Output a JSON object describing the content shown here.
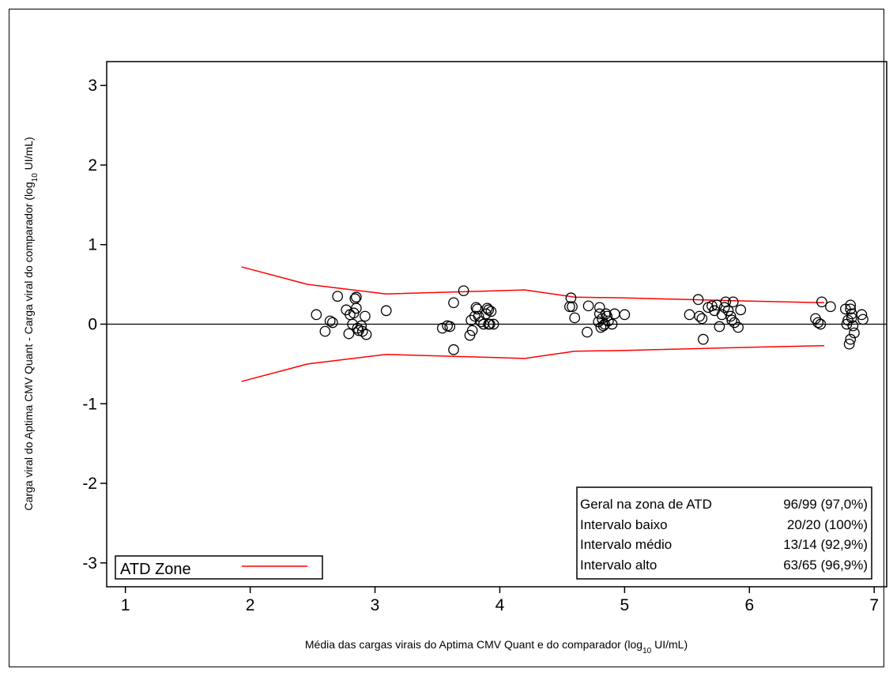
{
  "chart_data": {
    "type": "scatter",
    "title": "",
    "xlabel": {
      "main": "Média das cargas virais do Aptima CMV Quant e do comparador (log",
      "sub": "10",
      "unit": " UI/mL)"
    },
    "ylabel": {
      "main": "Carga viral do Aptima CMV Quant - Carga viral do comparador (log",
      "sub": "10",
      "unit": " UI/mL)"
    },
    "xlim": [
      0.85,
      7.1
    ],
    "ylim": [
      -3.3,
      3.3
    ],
    "x_ticks": [
      1,
      2,
      3,
      4,
      5,
      6,
      7
    ],
    "x_tick_labels": [
      "1",
      "2",
      "3",
      "4",
      "5",
      "6",
      "7"
    ],
    "y_ticks": [
      -3,
      -2,
      -1,
      0,
      1,
      2,
      3
    ],
    "y_tick_labels": [
      "-3",
      "-2",
      "-1",
      "0",
      "1",
      "2",
      "3"
    ],
    "zero_line": 0,
    "atd_zone": {
      "name": "ATD Zone",
      "color": "#ff0000",
      "x": [
        1.93,
        2.46,
        3.09,
        4.2,
        4.6,
        5.0,
        5.5,
        6.0,
        6.6
      ],
      "upper": [
        0.72,
        0.5,
        0.38,
        0.43,
        0.34,
        0.33,
        0.31,
        0.29,
        0.27
      ],
      "lower": [
        -0.72,
        -0.5,
        -0.38,
        -0.43,
        -0.34,
        -0.33,
        -0.31,
        -0.29,
        -0.27
      ]
    },
    "points": {
      "x": [
        2.53,
        2.6,
        2.64,
        2.66,
        2.7,
        2.77,
        2.79,
        2.8,
        2.82,
        2.83,
        2.84,
        2.85,
        2.85,
        2.86,
        2.87,
        2.89,
        2.9,
        2.92,
        2.93,
        3.09,
        3.54,
        3.58,
        3.6,
        3.63,
        3.63,
        3.71,
        3.76,
        3.77,
        3.78,
        3.8,
        3.81,
        3.82,
        3.83,
        3.85,
        3.87,
        3.89,
        3.9,
        3.91,
        3.91,
        3.92,
        3.93,
        3.95,
        4.56,
        4.57,
        4.58,
        4.6,
        4.7,
        4.71,
        4.79,
        4.8,
        4.8,
        4.81,
        4.82,
        4.83,
        4.84,
        4.85,
        4.86,
        4.87,
        4.9,
        4.92,
        5.0,
        5.52,
        5.59,
        5.6,
        5.62,
        5.63,
        5.67,
        5.7,
        5.72,
        5.74,
        5.76,
        5.78,
        5.8,
        5.81,
        5.83,
        5.85,
        5.86,
        5.87,
        5.88,
        5.91,
        5.93,
        6.53,
        6.55,
        6.57,
        6.58,
        6.65,
        6.77,
        6.78,
        6.79,
        6.8,
        6.81,
        6.81,
        6.81,
        6.82,
        6.82,
        6.83,
        6.84,
        6.9,
        6.91
      ],
      "y": [
        0.12,
        -0.09,
        0.04,
        0.02,
        0.35,
        0.18,
        -0.12,
        0.12,
        0.0,
        0.14,
        0.32,
        0.34,
        0.2,
        -0.05,
        -0.08,
        -0.02,
        -0.09,
        0.1,
        -0.13,
        0.17,
        -0.05,
        -0.02,
        -0.03,
        -0.32,
        0.27,
        0.42,
        -0.14,
        0.05,
        -0.08,
        0.1,
        0.21,
        0.19,
        0.1,
        0.03,
        0.0,
        0.13,
        0.2,
        0.0,
        0.18,
        0.0,
        0.16,
        0.0,
        0.22,
        0.33,
        0.22,
        0.08,
        -0.1,
        0.23,
        0.03,
        0.21,
        0.13,
        -0.04,
        0.07,
        -0.02,
        0.0,
        0.13,
        0.1,
        0.04,
        0.0,
        0.13,
        0.12,
        0.12,
        0.31,
        0.1,
        0.07,
        -0.19,
        0.21,
        0.23,
        0.17,
        0.24,
        -0.03,
        0.12,
        0.21,
        0.28,
        0.17,
        0.1,
        0.05,
        0.28,
        0.02,
        -0.04,
        0.18,
        0.07,
        0.02,
        0.0,
        0.28,
        0.22,
        0.19,
        0.0,
        0.05,
        -0.25,
        -0.19,
        0.24,
        0.19,
        0.08,
        0.13,
        -0.02,
        -0.11,
        0.12,
        0.06
      ]
    },
    "stats_table": {
      "rows": [
        {
          "label": "Geral na zona de ATD",
          "value": "96/99 (97,0%)"
        },
        {
          "label": "Intervalo baixo",
          "value": "20/20 (100%)"
        },
        {
          "label": "Intervalo médio",
          "value": "13/14 (92,9%)"
        },
        {
          "label": "Intervalo alto",
          "value": "63/65 (96,9%)"
        }
      ]
    },
    "legend": {
      "placement": "bottom-left",
      "label": "ATD Zone"
    }
  }
}
